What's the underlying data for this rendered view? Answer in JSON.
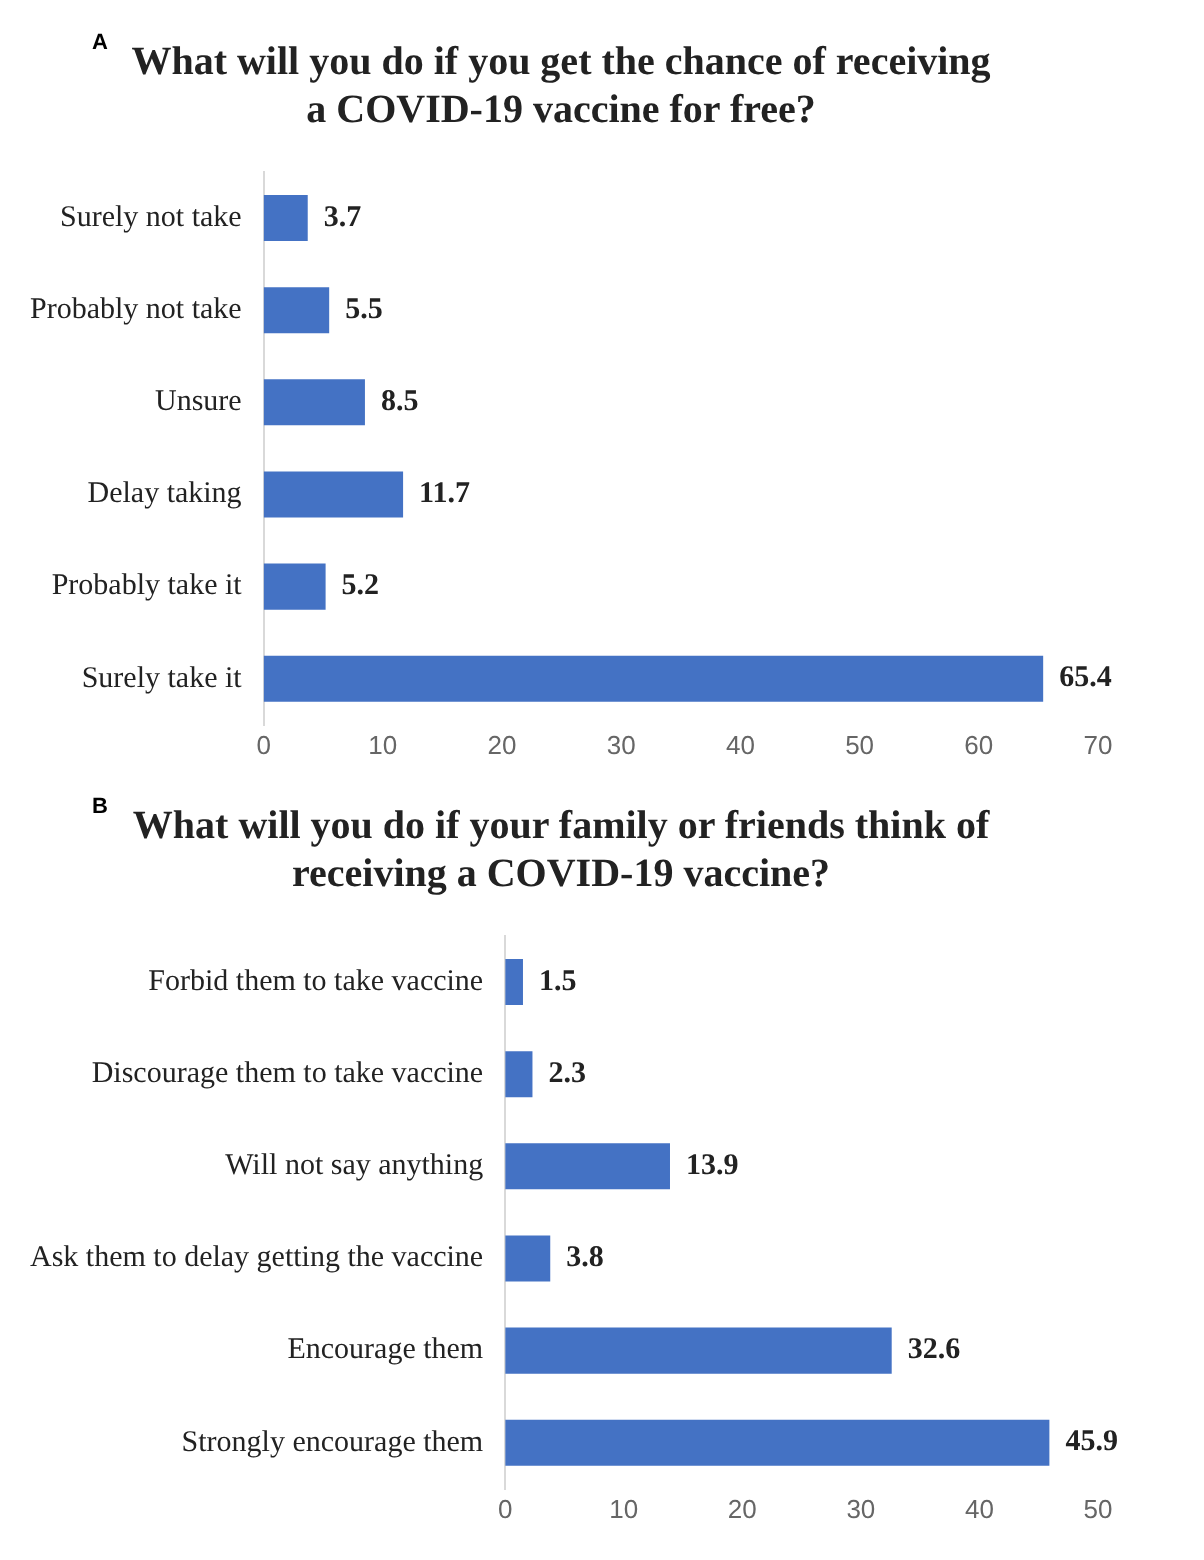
{
  "chart_data": [
    {
      "type": "bar",
      "orientation": "horizontal",
      "title": "What will you do if you get the chance of receiving a COVID-19 vaccine for free?",
      "annotations": [
        "A"
      ],
      "categories": [
        "Surely not take",
        "Probably not take",
        "Unsure",
        "Delay taking",
        "Probably take it",
        "Surely take it"
      ],
      "values": [
        3.7,
        5.5,
        8.5,
        11.7,
        5.2,
        65.4
      ],
      "color": "#4472c4",
      "xlim": [
        0,
        70
      ],
      "xticks": [
        0,
        10,
        20,
        30,
        40,
        50,
        60,
        70
      ],
      "grid": false,
      "data_labels": true,
      "legend": false
    },
    {
      "type": "bar",
      "orientation": "horizontal",
      "title": "What will you do if your family or friends think of receiving a COVID-19 vaccine?",
      "annotations": [
        "B"
      ],
      "categories": [
        "Forbid them to take vaccine",
        "Discourage them to take vaccine",
        "Will not say anything",
        "Ask them to delay getting the vaccine",
        "Encourage them",
        "Strongly encourage them"
      ],
      "values": [
        1.5,
        2.3,
        13.9,
        3.8,
        32.6,
        45.9
      ],
      "color": "#4472c4",
      "xlim": [
        0,
        50
      ],
      "xticks": [
        0,
        10,
        20,
        30,
        40,
        50
      ],
      "grid": false,
      "data_labels": true,
      "legend": false
    }
  ]
}
